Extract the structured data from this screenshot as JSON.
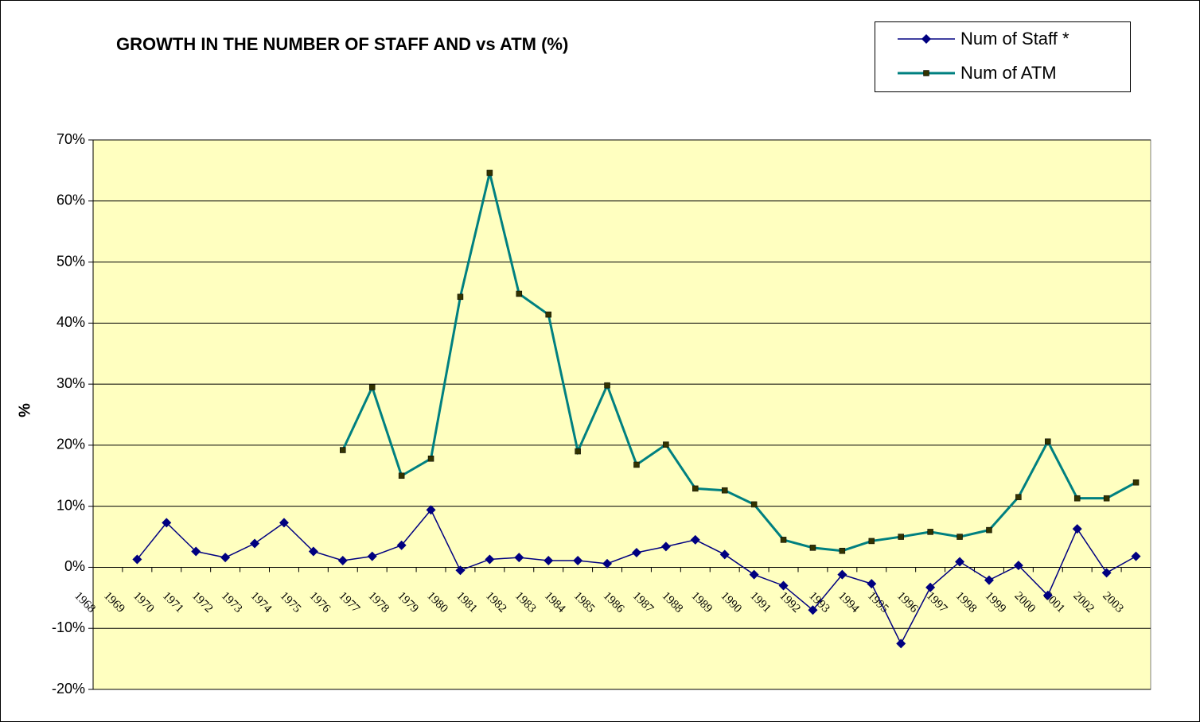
{
  "chart_data": {
    "type": "line",
    "title": "GROWTH IN THE NUMBER OF STAFF AND  vs ATM (%)",
    "y_label": "%",
    "categories": [
      "1968",
      "1969",
      "1970",
      "1971",
      "1972",
      "1973",
      "1974",
      "1975",
      "1976",
      "1977",
      "1978",
      "1979",
      "1980",
      "1981",
      "1982",
      "1983",
      "1984",
      "1985",
      "1986",
      "1987",
      "1988",
      "1989",
      "1990",
      "1991",
      "1992",
      "1993",
      "1994",
      "1995",
      "1996",
      "1997",
      "1998",
      "1999",
      "2000",
      "2001",
      "2002",
      "2003"
    ],
    "series": [
      {
        "name": "Num of Staff *",
        "color": "#000080",
        "marker": "diamond",
        "values": [
          null,
          1.3,
          7.3,
          2.6,
          1.6,
          3.9,
          7.3,
          2.6,
          1.1,
          1.8,
          3.6,
          9.4,
          -0.5,
          1.3,
          1.6,
          1.1,
          1.1,
          0.6,
          2.4,
          3.4,
          4.5,
          2.1,
          -1.2,
          -3.0,
          -7.0,
          -1.2,
          -2.7,
          -12.5,
          -3.3,
          0.9,
          -2.1,
          0.3,
          -4.6,
          6.3,
          -0.9,
          1.8
        ]
      },
      {
        "name": "Num of ATM",
        "color": "#008080",
        "marker": "square",
        "values": [
          null,
          null,
          null,
          null,
          null,
          null,
          null,
          null,
          19.2,
          29.5,
          15.0,
          17.8,
          44.3,
          64.6,
          44.8,
          41.4,
          19.0,
          29.8,
          16.8,
          20.1,
          12.9,
          12.6,
          10.3,
          4.5,
          3.2,
          2.7,
          4.3,
          5.0,
          5.8,
          5.0,
          6.1,
          11.5,
          20.6,
          11.3,
          11.3,
          13.9
        ]
      }
    ],
    "ylim": [
      -20,
      70
    ],
    "yticks": [
      {
        "value": -20,
        "label": "-20%"
      },
      {
        "value": -10,
        "label": "-10%"
      },
      {
        "value": 0,
        "label": "0%"
      },
      {
        "value": 10,
        "label": "10%"
      },
      {
        "value": 20,
        "label": "20%"
      },
      {
        "value": 30,
        "label": "30%"
      },
      {
        "value": 40,
        "label": "40%"
      },
      {
        "value": 50,
        "label": "50%"
      },
      {
        "value": 60,
        "label": "60%"
      },
      {
        "value": 70,
        "label": "70%"
      }
    ],
    "grid": true,
    "legend": "top-right",
    "plot_background": "#FFFFC0"
  }
}
